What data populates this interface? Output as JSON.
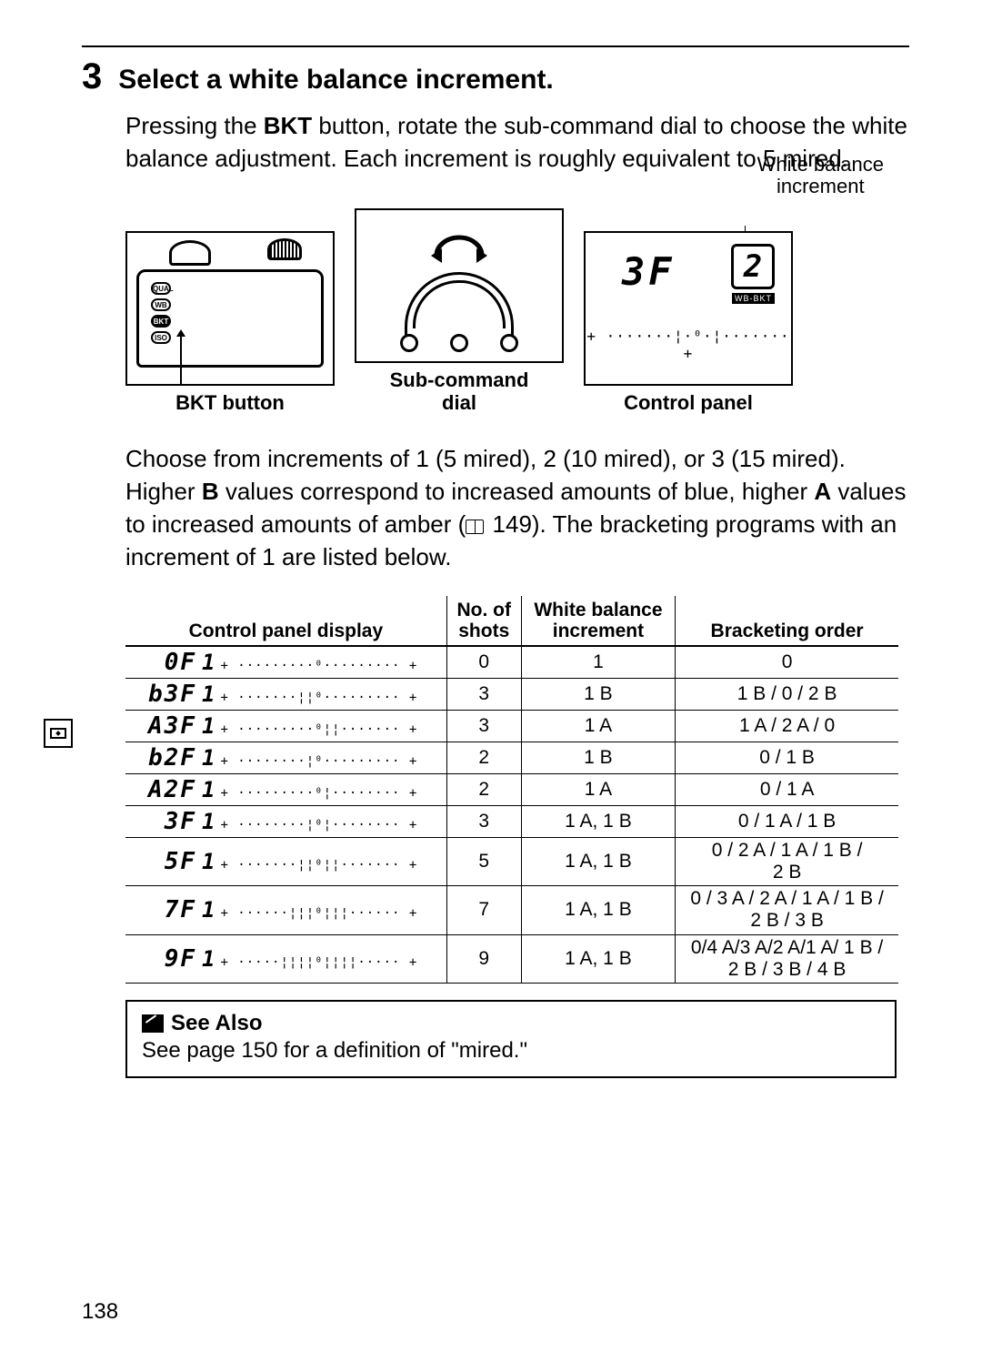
{
  "step": {
    "number": "3",
    "title": "Select a white balance increment."
  },
  "para1": {
    "pre": "Pressing the ",
    "bkt": "BKT",
    "post": " button, rotate the sub-command dial to choose the white balance adjustment.  Each increment is roughly equivalent to 5 mired."
  },
  "figs": {
    "wb_label_l1": "White balance",
    "wb_label_l2": "increment",
    "cap1": "BKT button",
    "cap2_l1": "Sub-command",
    "cap2_l2": "dial",
    "cap3": "Control panel",
    "lcd_main": "3F",
    "lcd_box": "2",
    "lcd_badge": "WB-BKT",
    "lcd_scale": "+ ·······¦·⁰·¦······· +",
    "cam_labels": {
      "qual": "QUAL",
      "wb": "WB",
      "bkt": "BKT",
      "iso": "ISO"
    }
  },
  "para2": {
    "pre": "Choose from increments of 1 (5 mired), 2 (10 mired), or 3 (15 mired).  Higher ",
    "b": "B",
    "mid1": " values correspond to increased amounts of blue, higher ",
    "a": "A",
    "mid2": " values to increased amounts of amber (",
    "ref": " 149).  The bracketing programs with an increment of 1 are listed below."
  },
  "table": {
    "headers": {
      "disp": "Control panel display",
      "shots_l1": "No. of",
      "shots_l2": "shots",
      "wb_l1": "White balance",
      "wb_l2": "increment",
      "order": "Bracketing order"
    },
    "rows": [
      {
        "seg": "0F",
        "ticks": "+ ·········⁰········· +",
        "shots": "0",
        "wb": "1",
        "order": "0"
      },
      {
        "seg": "b3F",
        "ticks": "+ ·······¦¦⁰········· +",
        "shots": "3",
        "wb": "1 B",
        "order": "1 B / 0 / 2 B"
      },
      {
        "seg": "A3F",
        "ticks": "+ ·········⁰¦¦······· +",
        "shots": "3",
        "wb": "1 A",
        "order": "1 A / 2 A / 0"
      },
      {
        "seg": "b2F",
        "ticks": "+ ········¦⁰········· +",
        "shots": "2",
        "wb": "1 B",
        "order": "0 / 1 B"
      },
      {
        "seg": "A2F",
        "ticks": "+ ·········⁰¦········ +",
        "shots": "2",
        "wb": "1 A",
        "order": "0 / 1 A"
      },
      {
        "seg": "3F",
        "ticks": "+ ········¦⁰¦········ +",
        "shots": "3",
        "wb": "1 A, 1 B",
        "order": "0 / 1 A / 1 B"
      },
      {
        "seg": "5F",
        "ticks": "+ ·······¦¦⁰¦¦······· +",
        "shots": "5",
        "wb": "1 A, 1 B",
        "order": "0 / 2 A / 1 A / 1 B / 2 B"
      },
      {
        "seg": "7F",
        "ticks": "+ ······¦¦¦⁰¦¦¦······ +",
        "shots": "7",
        "wb": "1 A, 1 B",
        "order": "0 / 3 A / 2 A / 1 A / 1 B / 2 B / 3 B"
      },
      {
        "seg": "9F",
        "ticks": "+ ·····¦¦¦¦⁰¦¦¦¦····· +",
        "shots": "9",
        "wb": "1 A, 1 B",
        "order": "0/4 A/3 A/2 A/1 A/ 1 B / 2 B / 3 B / 4 B"
      }
    ]
  },
  "seealso": {
    "title": "See Also",
    "body": "See page 150 for a definition of \"mired.\""
  },
  "page_number": "138"
}
